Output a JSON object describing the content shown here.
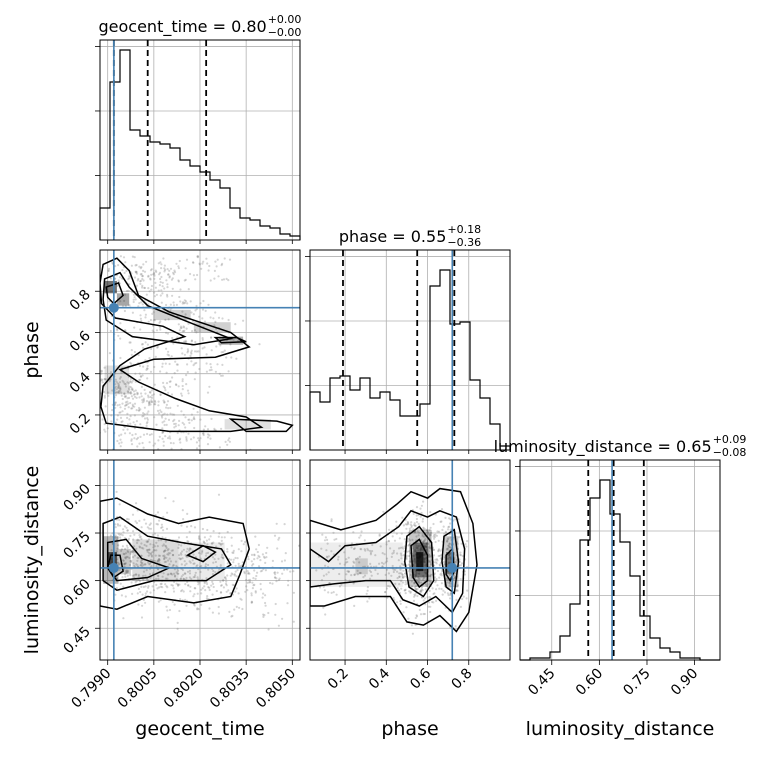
{
  "chart_data": {
    "type": "corner",
    "parameters": [
      "geocent_time",
      "phase",
      "luminosity_distance"
    ],
    "truths": {
      "geocent_time": 0.7992,
      "phase": 0.72,
      "luminosity_distance": 0.64
    },
    "ranges": {
      "geocent_time": [
        0.79875,
        0.80525
      ],
      "phase": [
        0.03,
        1.0
      ],
      "luminosity_distance": [
        0.35,
        0.98
      ]
    },
    "xticks": {
      "geocent_time": [
        "0.7990",
        "0.8005",
        "0.8020",
        "0.8035",
        "0.8050"
      ],
      "phase": [
        "0.2",
        "0.4",
        "0.6",
        "0.8"
      ],
      "luminosity_distance": [
        "0.45",
        "0.60",
        "0.75",
        "0.90"
      ]
    },
    "yticks": {
      "phase": [
        "0.2",
        "0.4",
        "0.6",
        "0.8"
      ],
      "luminosity_distance": [
        "0.45",
        "0.60",
        "0.75",
        "0.90"
      ]
    },
    "titles": [
      {
        "parameter": "geocent_time",
        "base": "geocent_time = 0.80",
        "plus": "+0.00",
        "minus": "−0.00"
      },
      {
        "parameter": "phase",
        "base": "phase = 0.55",
        "plus": "+0.18",
        "minus": "−0.36"
      },
      {
        "parameter": "luminosity_distance",
        "base": "luminosity_distance = 0.65",
        "plus": "+0.09",
        "minus": "−0.08"
      }
    ],
    "quantiles": {
      "geocent_time": [
        0.7992,
        0.8003,
        0.8022
      ],
      "phase": [
        0.19,
        0.55,
        0.73
      ],
      "luminosity_distance": [
        0.565,
        0.645,
        0.74
      ]
    },
    "histograms": {
      "geocent_time": {
        "range": [
          0.79875,
          0.80525
        ],
        "counts": [
          0.16,
          0.79,
          0.95,
          0.55,
          0.52,
          0.49,
          0.48,
          0.46,
          0.4,
          0.37,
          0.34,
          0.3,
          0.26,
          0.16,
          0.11,
          0.1,
          0.07,
          0.06,
          0.03,
          0.02
        ]
      },
      "phase": {
        "range": [
          0.03,
          1.0
        ],
        "counts": [
          0.29,
          0.24,
          0.36,
          0.37,
          0.3,
          0.36,
          0.26,
          0.29,
          0.25,
          0.17,
          0.17,
          0.23,
          0.82,
          0.9,
          0.63,
          0.64,
          0.35,
          0.26,
          0.13,
          0.02
        ]
      },
      "luminosity_distance": {
        "range": [
          0.35,
          0.98
        ],
        "counts": [
          0.0,
          0.01,
          0.01,
          0.04,
          0.12,
          0.28,
          0.6,
          0.81,
          0.9,
          0.73,
          0.59,
          0.42,
          0.22,
          0.11,
          0.06,
          0.04,
          0.01,
          0.01,
          0.0,
          0.0
        ]
      }
    }
  }
}
